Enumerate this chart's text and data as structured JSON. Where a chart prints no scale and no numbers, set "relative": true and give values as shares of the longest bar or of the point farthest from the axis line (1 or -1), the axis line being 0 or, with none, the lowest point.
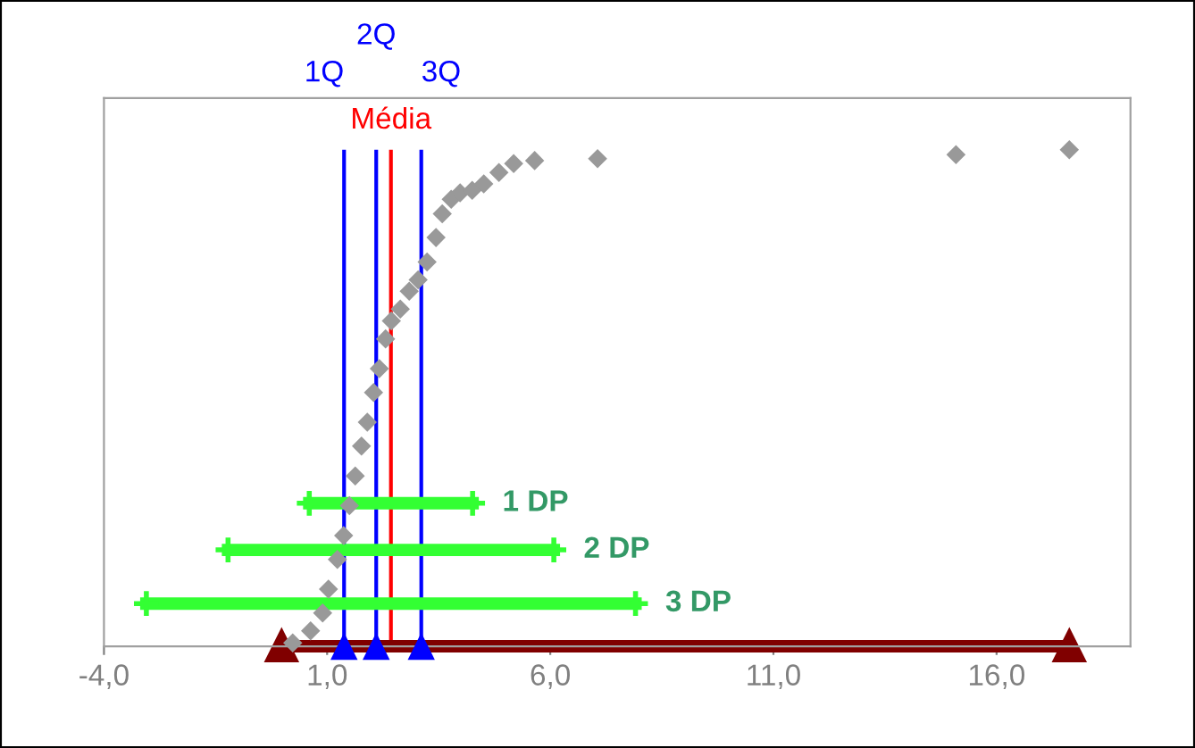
{
  "chart_data": {
    "type": "scatter",
    "relative": true,
    "xlim": [
      -4,
      19
    ],
    "xticks": [
      {
        "value": -4,
        "label": "-4,0"
      },
      {
        "value": 1,
        "label": "1,0"
      },
      {
        "value": 6,
        "label": "6,0"
      },
      {
        "value": 11,
        "label": "11,0"
      },
      {
        "value": 16,
        "label": "16,0"
      }
    ],
    "tick_labels": "x",
    "grid": false,
    "legend": false,
    "series": [
      {
        "type": "line",
        "color": "#800000",
        "marker": "triangle",
        "x": [
          -0.02,
          17.63
        ],
        "values": [
          0,
          0
        ]
      },
      {
        "color": "#999999",
        "marker": "diamond",
        "x": [
          0.23,
          0.63,
          0.9,
          1.03,
          1.23,
          1.37,
          1.5,
          1.63,
          1.77,
          1.9,
          2.04,
          2.17,
          2.31,
          2.44,
          2.64,
          2.84,
          3.04,
          3.24,
          3.44,
          3.58,
          3.78,
          3.98,
          4.25,
          4.51,
          4.85,
          5.18,
          5.65,
          7.06,
          15.09,
          17.63
        ],
        "values": [
          0.007,
          0.031,
          0.067,
          0.115,
          0.175,
          0.223,
          0.283,
          0.343,
          0.403,
          0.451,
          0.511,
          0.559,
          0.619,
          0.655,
          0.679,
          0.715,
          0.738,
          0.774,
          0.823,
          0.871,
          0.9,
          0.913,
          0.918,
          0.931,
          0.954,
          0.972,
          0.978,
          0.982,
          0.99,
          1
        ]
      },
      {
        "color": "#0000ff",
        "marker": "triangle",
        "x": [
          1.38,
          2.1,
          3.11
        ],
        "values": [
          0,
          0,
          0
        ]
      },
      {
        "type": "line",
        "name": "1 DP",
        "color": "#33ff33",
        "marker": "cross",
        "x": [
          0.6,
          4.26
        ],
        "values": [
          0.288,
          0.288
        ]
      },
      {
        "type": "line",
        "name": "2 DP",
        "color": "#33ff33",
        "marker": "cross",
        "x": [
          -1.22,
          6.08
        ],
        "values": [
          0.194,
          0.194
        ]
      },
      {
        "type": "line",
        "name": "3 DP",
        "color": "#33ff33",
        "marker": "cross",
        "x": [
          -3.05,
          7.91
        ],
        "values": [
          0.086,
          0.086
        ]
      }
    ],
    "ref_lines": [
      {
        "axis": "x",
        "value": 1.38,
        "label": "1Q",
        "color": "#0000ff"
      },
      {
        "axis": "x",
        "value": 2.1,
        "label": "2Q",
        "color": "#0000ff"
      },
      {
        "axis": "x",
        "value": 3.11,
        "label": "3Q",
        "color": "#0000ff"
      },
      {
        "axis": "x",
        "value": 2.43,
        "label": "Média",
        "color": "#ff0000"
      }
    ]
  }
}
